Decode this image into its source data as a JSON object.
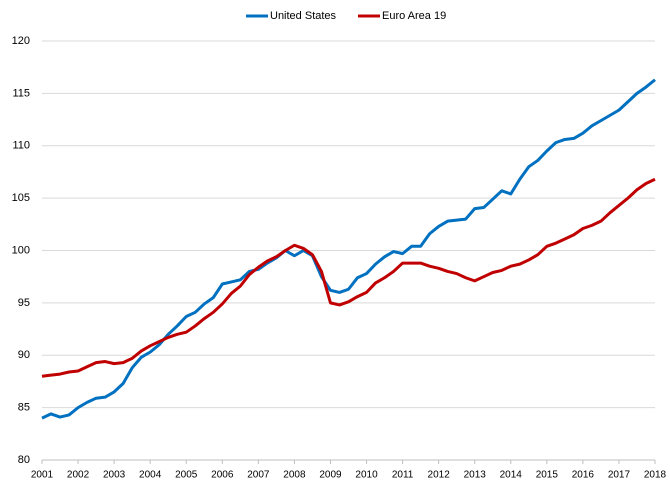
{
  "chart_data": {
    "type": "line",
    "categories": [
      "2001",
      null,
      null,
      null,
      "2002",
      null,
      null,
      null,
      "2003",
      null,
      null,
      null,
      "2004",
      null,
      null,
      null,
      "2005",
      null,
      null,
      null,
      "2006",
      null,
      null,
      null,
      "2007",
      null,
      null,
      null,
      "2008",
      null,
      null,
      null,
      "2009",
      null,
      null,
      null,
      "2010",
      null,
      null,
      null,
      "2011",
      null,
      null,
      null,
      "2012",
      null,
      null,
      null,
      "2013",
      null,
      null,
      null,
      "2014",
      null,
      null,
      null,
      "2015",
      null,
      null,
      null,
      "2016",
      null,
      null,
      null,
      "2017",
      null,
      null,
      null,
      "2018"
    ],
    "series": [
      {
        "name": "United States",
        "color": "#0070c0",
        "values": [
          84.0,
          84.4,
          84.1,
          84.3,
          85.0,
          85.5,
          85.9,
          86.0,
          86.5,
          87.3,
          88.8,
          89.8,
          90.3,
          91.0,
          92.0,
          92.8,
          93.7,
          94.1,
          94.9,
          95.5,
          96.8,
          97.0,
          97.2,
          98.0,
          98.2,
          98.8,
          99.3,
          100.0,
          99.5,
          100.0,
          99.5,
          97.5,
          96.2,
          96.0,
          96.3,
          97.4,
          97.8,
          98.7,
          99.4,
          99.9,
          99.7,
          100.4,
          100.4,
          101.6,
          102.3,
          102.8,
          102.9,
          103.0,
          104.0,
          104.1,
          104.9,
          105.7,
          105.4,
          106.8,
          108.0,
          108.6,
          109.5,
          110.3,
          110.6,
          110.7,
          111.2,
          111.9,
          112.4,
          112.9,
          113.4,
          114.2,
          115.0,
          115.6,
          116.3
        ]
      },
      {
        "name": "Euro Area 19",
        "color": "#c00000",
        "values": [
          88.0,
          88.1,
          88.2,
          88.4,
          88.5,
          88.9,
          89.3,
          89.4,
          89.2,
          89.3,
          89.7,
          90.4,
          90.9,
          91.3,
          91.7,
          92.0,
          92.2,
          92.8,
          93.5,
          94.1,
          94.9,
          95.9,
          96.6,
          97.7,
          98.4,
          99.0,
          99.4,
          100.0,
          100.5,
          100.2,
          99.6,
          98.0,
          95.0,
          94.8,
          95.1,
          95.6,
          96.0,
          96.9,
          97.4,
          98.0,
          98.8,
          98.8,
          98.8,
          98.5,
          98.3,
          98.0,
          97.8,
          97.4,
          97.1,
          97.5,
          97.9,
          98.1,
          98.5,
          98.7,
          99.1,
          99.6,
          100.4,
          100.7,
          101.1,
          101.5,
          102.1,
          102.4,
          102.8,
          103.6,
          104.3,
          105.0,
          105.8,
          106.4,
          106.8
        ]
      }
    ],
    "ylim": [
      80,
      120
    ],
    "yticks": [
      80,
      85,
      90,
      95,
      100,
      105,
      110,
      115,
      120
    ],
    "grid": true,
    "legend": "top"
  }
}
